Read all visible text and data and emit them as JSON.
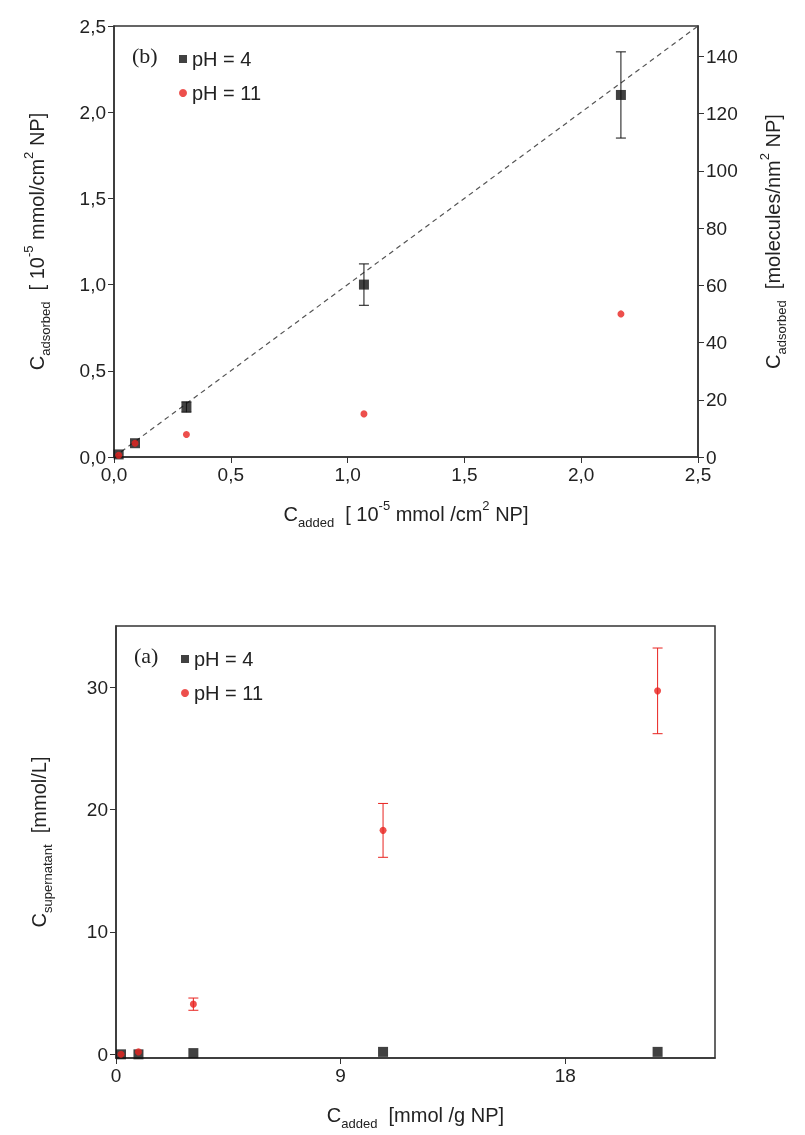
{
  "chart_data": [
    {
      "type": "scatter",
      "xlabel": "C$_{added}$  [ 10$^{-5}$ mmol /cm$^{2}$ NP]",
      "ylabel": "C$_{adsorbed}$  [ 10$^{-5}$ mmol/cm$^{2}$ NP]",
      "y2label": "C$_{adsorbed}$  [molecules/nm$^{2}$ NP]",
      "annotations": [
        "(b)"
      ],
      "xlim": [
        0,
        2.5
      ],
      "xticks": [
        {
          "value": 0,
          "label": "0,0"
        },
        {
          "value": 0.5,
          "label": "0,5"
        },
        {
          "value": 1,
          "label": "1,0"
        },
        {
          "value": 1.5,
          "label": "1,5"
        },
        {
          "value": 2,
          "label": "2,0"
        },
        {
          "value": 2.5,
          "label": "2,5"
        }
      ],
      "ylim": [
        0,
        2.5
      ],
      "yticks": [
        {
          "value": 0,
          "label": "0,0"
        },
        {
          "value": 0.5,
          "label": "0,5"
        },
        {
          "value": 1,
          "label": "1,0"
        },
        {
          "value": 1.5,
          "label": "1,5"
        },
        {
          "value": 2,
          "label": "2,0"
        },
        {
          "value": 2.5,
          "label": "2,5"
        }
      ],
      "y2lim": [
        0,
        150.6
      ],
      "y2ticks": [
        0,
        20,
        40,
        60,
        80,
        100,
        120,
        140
      ],
      "grid": false,
      "legend": "top left",
      "series": [
        {
          "name": "pH = 4",
          "color": "#111111",
          "marker": "square",
          "x": [
            0.02,
            0.09,
            0.31,
            1.07,
            2.17
          ],
          "values": [
            0.015,
            0.08,
            0.29,
            1.0,
            2.1
          ],
          "errors": [
            null,
            null,
            0.03,
            0.12,
            0.25
          ]
        },
        {
          "name": "pH = 11",
          "color": "#e8231f",
          "marker": "circle",
          "x": [
            0.02,
            0.09,
            0.31,
            1.07,
            2.17
          ],
          "values": [
            0.01,
            0.08,
            0.13,
            0.25,
            0.83
          ]
        },
        {
          "type": "line",
          "color": "#555555",
          "marker": "none",
          "line_style": "dashed",
          "x": [
            0,
            2.5
          ],
          "values": [
            0,
            2.5
          ]
        }
      ]
    },
    {
      "type": "scatter",
      "xlabel": "C$_{added}$  [mmol /g NP]",
      "ylabel": "C$_{supernatant}$  [mmol/L]",
      "annotations": [
        "(a)"
      ],
      "xlim": [
        0,
        24
      ],
      "xticks": [
        0,
        9,
        18
      ],
      "ylim": [
        -0.3,
        35
      ],
      "yticks": [
        0,
        10,
        20,
        30
      ],
      "grid": false,
      "legend": "top left",
      "series": [
        {
          "name": "pH = 4",
          "color": "#111111",
          "marker": "square",
          "x": [
            0.2,
            0.9,
            3.1,
            10.7,
            21.7
          ],
          "values": [
            0,
            0,
            0.1,
            0.2,
            0.2
          ]
        },
        {
          "name": "pH = 11",
          "color": "#e8231f",
          "marker": "circle",
          "x": [
            0.2,
            0.9,
            3.1,
            10.7,
            21.7
          ],
          "values": [
            0,
            0.2,
            4.1,
            18.3,
            29.7
          ],
          "errors": [
            null,
            null,
            0.5,
            2.2,
            3.5
          ]
        }
      ]
    }
  ]
}
